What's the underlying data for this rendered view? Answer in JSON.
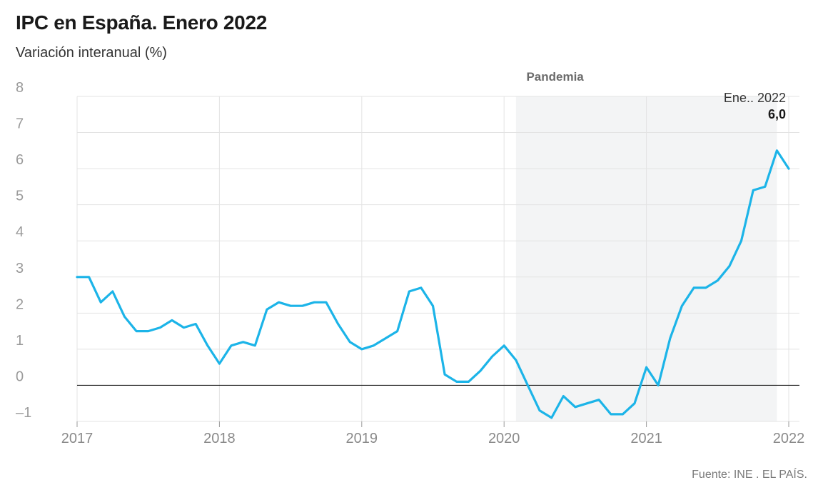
{
  "header": {
    "title": "IPC en España. Enero 2022",
    "subtitle": "Variación interanual (%)"
  },
  "footer": {
    "source": "Fuente: INE . EL PAÍS."
  },
  "chart_data": {
    "type": "line",
    "title": "IPC en España. Enero 2022",
    "subtitle": "Variación interanual (%)",
    "xlabel": "",
    "ylabel": "",
    "ylim": [
      -1,
      8
    ],
    "yticks": [
      -1,
      0,
      1,
      2,
      3,
      4,
      5,
      6,
      7,
      8
    ],
    "ytick_labels": [
      "–1",
      "0",
      "1",
      "2",
      "3",
      "4",
      "5",
      "6",
      "7",
      "8"
    ],
    "xlim": [
      "2017-01",
      "2022-01"
    ],
    "xticks": [
      "2017",
      "2018",
      "2019",
      "2020",
      "2021",
      "2022"
    ],
    "grid": true,
    "line_color": "#1cb4e8",
    "band": {
      "label": "Pandemia",
      "from": "2020-02",
      "to": "2021-12",
      "color": "#f3f4f5"
    },
    "annotation": {
      "label": "Ene.. 2022",
      "value_label": "6,0",
      "x": "2022-01"
    },
    "series": [
      {
        "x": [
          "2017-01",
          "2017-02",
          "2017-03",
          "2017-04",
          "2017-05",
          "2017-06",
          "2017-07",
          "2017-08",
          "2017-09",
          "2017-10",
          "2017-11",
          "2017-12",
          "2018-01",
          "2018-02",
          "2018-03",
          "2018-04",
          "2018-05",
          "2018-06",
          "2018-07",
          "2018-08",
          "2018-09",
          "2018-10",
          "2018-11",
          "2018-12",
          "2019-01",
          "2019-02",
          "2019-03",
          "2019-04",
          "2019-05",
          "2019-06",
          "2019-07",
          "2019-08",
          "2019-09",
          "2019-10",
          "2019-11",
          "2019-12",
          "2020-01",
          "2020-02",
          "2020-03",
          "2020-04",
          "2020-05",
          "2020-06",
          "2020-07",
          "2020-08",
          "2020-09",
          "2020-10",
          "2020-11",
          "2020-12",
          "2021-01",
          "2021-02",
          "2021-03",
          "2021-04",
          "2021-05",
          "2021-06",
          "2021-07",
          "2021-08",
          "2021-09",
          "2021-10",
          "2021-11",
          "2021-12",
          "2022-01"
        ],
        "values": [
          3.0,
          3.0,
          2.3,
          2.6,
          1.9,
          1.5,
          1.5,
          1.6,
          1.8,
          1.6,
          1.7,
          1.1,
          0.6,
          1.1,
          1.2,
          1.1,
          2.1,
          2.3,
          2.2,
          2.2,
          2.3,
          2.3,
          1.7,
          1.2,
          1.0,
          1.1,
          1.3,
          1.5,
          2.6,
          2.7,
          2.2,
          0.3,
          0.1,
          0.1,
          0.4,
          0.8,
          1.1,
          0.7,
          0.0,
          -0.7,
          -0.9,
          -0.3,
          -0.6,
          -0.5,
          -0.4,
          -0.8,
          -0.8,
          -0.5,
          0.5,
          0.0,
          1.3,
          2.2,
          2.7,
          2.7,
          2.9,
          3.3,
          4.0,
          5.4,
          5.5,
          6.5,
          6.0
        ]
      }
    ]
  }
}
